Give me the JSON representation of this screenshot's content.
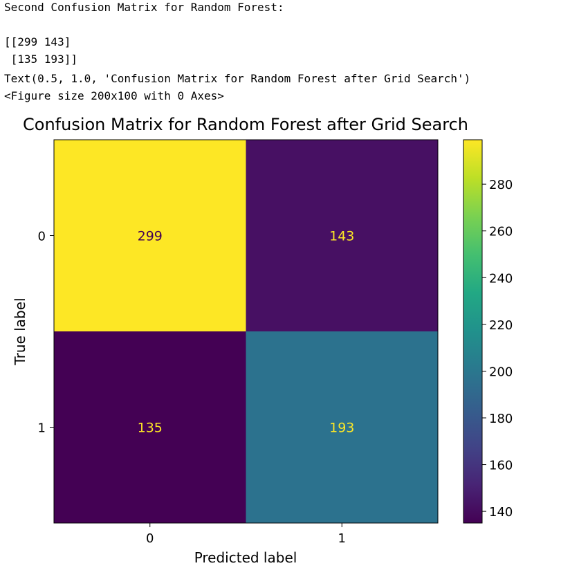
{
  "console": {
    "lines": [
      "Second Confusion Matrix for Random Forest:",
      "",
      "[[299 143]",
      " [135 193]]",
      "Text(0.5, 1.0, 'Confusion Matrix for Random Forest after Grid Search')",
      "<Figure size 200x100 with 0 Axes>"
    ]
  },
  "chart_data": {
    "type": "heatmap",
    "title": "Confusion Matrix for Random Forest after Grid Search",
    "xlabel": "Predicted label",
    "ylabel": "True label",
    "x_categories": [
      "0",
      "1"
    ],
    "y_categories": [
      "0",
      "1"
    ],
    "matrix": [
      [
        299,
        143
      ],
      [
        135,
        193
      ]
    ],
    "colormap": "viridis",
    "colorbar": {
      "min": 135,
      "max": 299,
      "ticks": [
        140,
        160,
        180,
        200,
        220,
        240,
        260,
        280
      ]
    },
    "cell_colors": {
      "299": "#fde725",
      "143": "#471063",
      "135": "#440154",
      "193": "#2c728e"
    },
    "text_colors": {
      "on_dark": "#fde725",
      "on_light": "#440154"
    }
  }
}
